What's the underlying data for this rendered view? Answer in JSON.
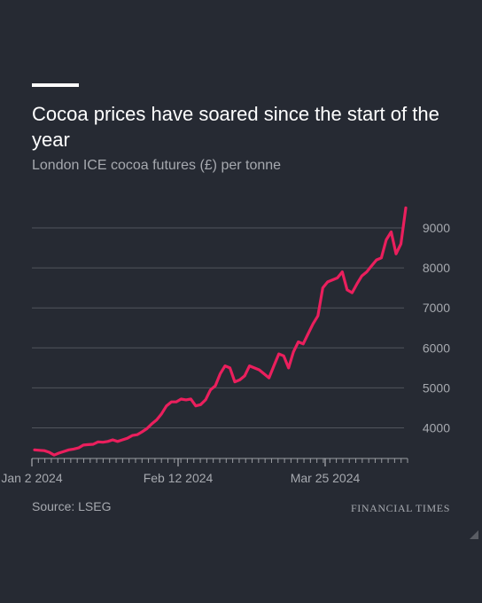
{
  "header": {
    "title": "Cocoa prices have soared since the start of the year",
    "subtitle": "London ICE cocoa futures (£) per tonne"
  },
  "footer": {
    "source": "Source: LSEG",
    "brand": "FINANCIAL TIMES"
  },
  "colors": {
    "background": "#262a33",
    "line": "#ea1f5d",
    "grid": "#50545c",
    "text_muted": "#a6a9af"
  },
  "icons": {
    "corner": "resize-corner-icon"
  },
  "chart_data": {
    "type": "line",
    "title": "Cocoa prices have soared since the start of the year",
    "subtitle": "London ICE cocoa futures (£) per tonne",
    "xlabel": "",
    "ylabel": "",
    "x_ticks": [
      "Jan 2 2024",
      "Feb 12 2024",
      "Mar 25 2024"
    ],
    "y_ticks": [
      4000,
      5000,
      6000,
      7000,
      8000,
      9000
    ],
    "ylim": [
      3250,
      9700
    ],
    "grid": true,
    "legend": "none",
    "y_axis_position": "right",
    "series": [
      {
        "values": [
          3450,
          3440,
          3430,
          3390,
          3320,
          3370,
          3410,
          3450,
          3470,
          3500,
          3570,
          3580,
          3590,
          3650,
          3640,
          3660,
          3700,
          3660,
          3700,
          3740,
          3810,
          3830,
          3900,
          3980,
          4100,
          4200,
          4350,
          4550,
          4650,
          4650,
          4720,
          4700,
          4720,
          4550,
          4580,
          4700,
          4950,
          5050,
          5350,
          5550,
          5500,
          5150,
          5200,
          5300,
          5550,
          5500,
          5450,
          5350,
          5250,
          5550,
          5850,
          5800,
          5500,
          5900,
          6150,
          6100,
          6350,
          6600,
          6800,
          7500,
          7650,
          7700,
          7750,
          7900,
          7450,
          7380,
          7600,
          7800,
          7900,
          8050,
          8200,
          8250,
          8700,
          8900,
          8350,
          8600,
          9500
        ]
      }
    ]
  }
}
